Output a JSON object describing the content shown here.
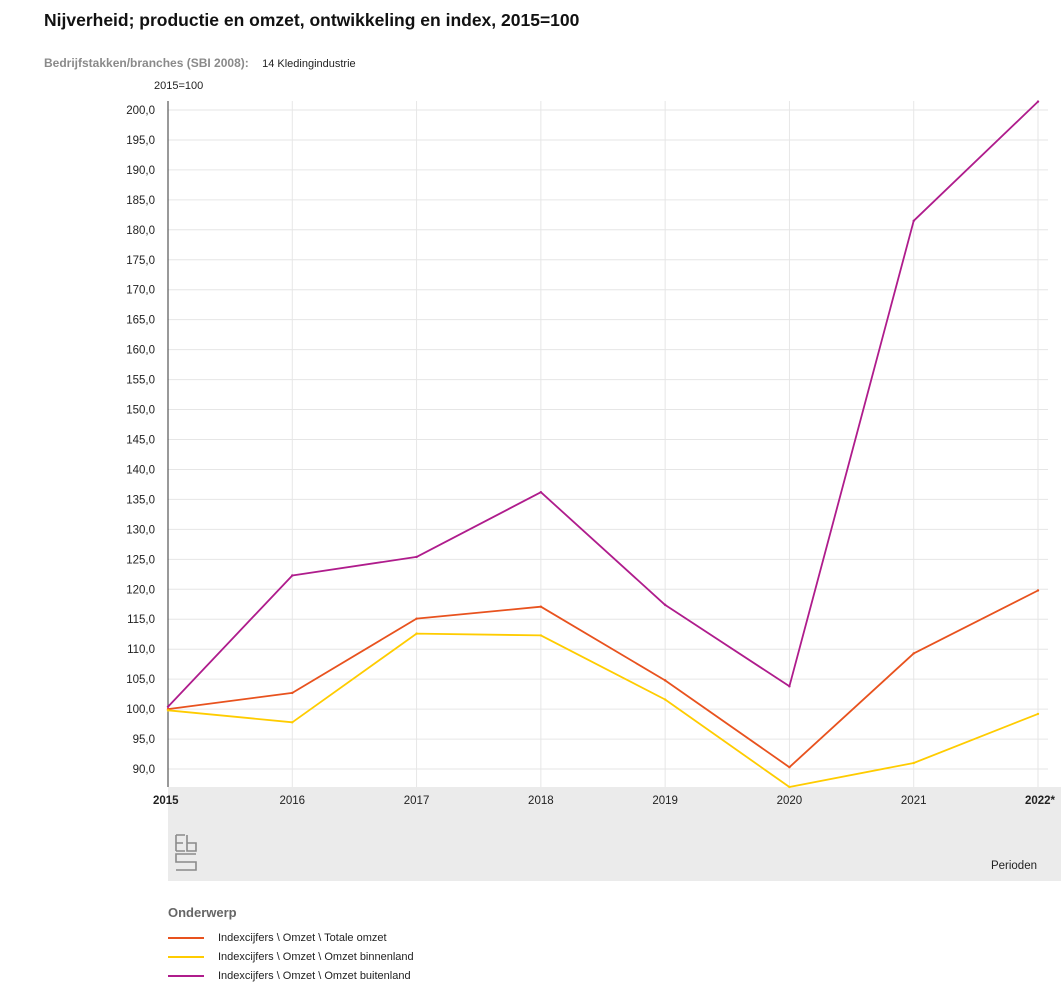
{
  "title": "Nijverheid; productie en omzet, ontwikkeling en index, 2015=100",
  "filter": {
    "label": "Bedrijfstakken/branches (SBI 2008):",
    "value": "14 Kledingindustrie"
  },
  "logo_text": "cbs",
  "chart_data": {
    "type": "line",
    "title": "Nijverheid; productie en omzet, ontwikkeling en index, 2015=100",
    "ylabel": "2015=100",
    "xlabel": "Perioden",
    "categories": [
      "2015",
      "2016",
      "2017",
      "2018",
      "2019",
      "2020",
      "2021",
      "2022*"
    ],
    "ylim": [
      87.0,
      201.5
    ],
    "yticks": [
      "90,0",
      "95,0",
      "100,0",
      "105,0",
      "110,0",
      "115,0",
      "120,0",
      "125,0",
      "130,0",
      "135,0",
      "140,0",
      "145,0",
      "150,0",
      "155,0",
      "160,0",
      "165,0",
      "170,0",
      "175,0",
      "180,0",
      "185,0",
      "190,0",
      "195,0",
      "200,0"
    ],
    "ytick_values": [
      90,
      95,
      100,
      105,
      110,
      115,
      120,
      125,
      130,
      135,
      140,
      145,
      150,
      155,
      160,
      165,
      170,
      175,
      180,
      185,
      190,
      195,
      200
    ],
    "grid": true,
    "legend_title": "Onderwerp",
    "legend_position": "bottom-left",
    "series": [
      {
        "name": "Indexcijfers \\ Omzet \\ Totale omzet",
        "color": "#e8521e",
        "values": [
          100.0,
          102.7,
          115.1,
          117.1,
          104.8,
          90.3,
          109.3,
          119.8
        ]
      },
      {
        "name": "Indexcijfers \\ Omzet \\ Omzet binnenland",
        "color": "#ffcc00",
        "values": [
          99.8,
          97.8,
          112.6,
          112.3,
          101.6,
          87.0,
          91.0,
          99.2
        ]
      },
      {
        "name": "Indexcijfers \\ Omzet \\ Omzet buitenland",
        "color": "#af1c8c",
        "values": [
          100.4,
          122.3,
          125.4,
          136.2,
          117.4,
          103.8,
          181.5,
          201.4
        ]
      }
    ]
  }
}
